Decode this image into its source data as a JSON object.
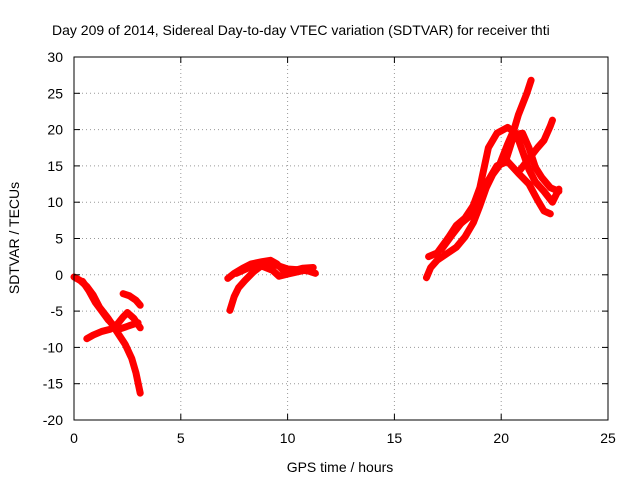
{
  "chart_data": {
    "type": "scatter",
    "title": "Day 209 of 2014, Sidereal Day-to-day VTEC variation (SDTVAR) for receiver thti",
    "xlabel": "GPS time / hours",
    "ylabel": "SDTVAR / TECUs",
    "xlim": [
      0,
      25
    ],
    "ylim": [
      -20,
      30
    ],
    "xticks": [
      "0",
      "5",
      "10",
      "15",
      "20",
      "25"
    ],
    "yticks": [
      "-20",
      "-15",
      "-10",
      "-5",
      "0",
      "5",
      "10",
      "15",
      "20",
      "25",
      "30"
    ],
    "grid": true,
    "legend": "none",
    "marker": "+",
    "color": "#ff0000",
    "series": [
      {
        "values": [
          [
            0.0,
            -0.3
          ],
          [
            0.3,
            -0.8
          ],
          [
            0.6,
            -1.6
          ],
          [
            0.9,
            -2.8
          ],
          [
            1.2,
            -4.5
          ],
          [
            1.6,
            -6.0
          ],
          [
            2.0,
            -7.8
          ],
          [
            2.4,
            -9.6
          ],
          [
            2.7,
            -11.5
          ],
          [
            2.9,
            -13.5
          ],
          [
            3.1,
            -16.3
          ]
        ]
      },
      {
        "values": [
          [
            0.4,
            -0.9
          ],
          [
            0.7,
            -2.2
          ],
          [
            1.0,
            -3.8
          ],
          [
            1.3,
            -5.0
          ],
          [
            1.6,
            -6.2
          ],
          [
            1.9,
            -7.1
          ],
          [
            2.2,
            -7.4
          ],
          [
            2.6,
            -7.0
          ],
          [
            3.0,
            -6.6
          ]
        ]
      },
      {
        "values": [
          [
            0.6,
            -8.8
          ],
          [
            0.9,
            -8.3
          ],
          [
            1.3,
            -7.8
          ],
          [
            1.7,
            -7.5
          ],
          [
            2.0,
            -6.9
          ],
          [
            2.3,
            -5.8
          ],
          [
            2.5,
            -5.2
          ],
          [
            2.8,
            -6.0
          ],
          [
            3.1,
            -7.3
          ]
        ]
      },
      {
        "values": [
          [
            2.3,
            -2.6
          ],
          [
            2.6,
            -2.9
          ],
          [
            2.9,
            -3.5
          ],
          [
            3.1,
            -4.2
          ]
        ]
      },
      {
        "values": [
          [
            7.3,
            -4.9
          ],
          [
            7.5,
            -3.0
          ],
          [
            7.7,
            -1.8
          ],
          [
            8.0,
            -0.8
          ],
          [
            8.4,
            0.4
          ],
          [
            8.8,
            1.3
          ],
          [
            9.2,
            1.6
          ],
          [
            9.6,
            1.2
          ],
          [
            10.0,
            0.8
          ],
          [
            10.5,
            0.7
          ],
          [
            11.0,
            0.5
          ],
          [
            11.3,
            0.2
          ]
        ]
      },
      {
        "values": [
          [
            7.2,
            -0.5
          ],
          [
            7.5,
            0.2
          ],
          [
            7.9,
            0.9
          ],
          [
            8.3,
            1.5
          ],
          [
            8.8,
            1.8
          ],
          [
            9.2,
            2.0
          ],
          [
            9.5,
            1.5
          ],
          [
            9.8,
            0.6
          ],
          [
            10.2,
            0.5
          ],
          [
            10.7,
            0.9
          ],
          [
            11.2,
            1.0
          ]
        ]
      },
      {
        "values": [
          [
            7.6,
            0.2
          ],
          [
            8.2,
            1.0
          ],
          [
            8.8,
            1.2
          ],
          [
            9.3,
            0.6
          ],
          [
            9.6,
            -0.2
          ],
          [
            10.0,
            0.1
          ],
          [
            10.6,
            0.5
          ],
          [
            11.1,
            0.8
          ]
        ]
      },
      {
        "values": [
          [
            16.5,
            -0.4
          ],
          [
            16.7,
            1.0
          ],
          [
            17.0,
            2.0
          ],
          [
            17.5,
            3.0
          ],
          [
            17.9,
            3.8
          ],
          [
            18.3,
            5.2
          ],
          [
            18.7,
            7.2
          ],
          [
            19.0,
            9.5
          ],
          [
            19.3,
            12.0
          ],
          [
            19.6,
            13.8
          ],
          [
            19.9,
            15.0
          ],
          [
            20.1,
            16.5
          ],
          [
            20.3,
            18.0
          ],
          [
            20.6,
            20.0
          ],
          [
            20.8,
            22.0
          ],
          [
            21.0,
            23.5
          ],
          [
            21.2,
            25.0
          ],
          [
            21.4,
            26.8
          ]
        ]
      },
      {
        "values": [
          [
            16.6,
            2.5
          ],
          [
            17.0,
            3.0
          ],
          [
            17.5,
            5.0
          ],
          [
            17.9,
            6.8
          ],
          [
            18.3,
            7.8
          ],
          [
            18.8,
            10.0
          ],
          [
            19.3,
            12.5
          ],
          [
            19.8,
            15.0
          ],
          [
            20.3,
            15.6
          ],
          [
            20.8,
            14.0
          ],
          [
            21.3,
            12.5
          ],
          [
            21.7,
            10.3
          ],
          [
            22.0,
            8.8
          ],
          [
            22.3,
            8.4
          ]
        ]
      },
      {
        "values": [
          [
            17.2,
            3.5
          ],
          [
            17.7,
            5.5
          ],
          [
            18.2,
            7.4
          ],
          [
            18.6,
            8.3
          ],
          [
            19.0,
            10.5
          ],
          [
            19.4,
            13.0
          ],
          [
            19.8,
            15.0
          ],
          [
            20.2,
            15.6
          ],
          [
            20.6,
            19.3
          ],
          [
            21.0,
            19.5
          ],
          [
            21.3,
            17.5
          ],
          [
            21.6,
            14.8
          ],
          [
            21.9,
            13.4
          ],
          [
            22.3,
            12.0
          ],
          [
            22.7,
            11.5
          ]
        ]
      },
      {
        "values": [
          [
            17.5,
            5.0
          ],
          [
            18.0,
            6.8
          ],
          [
            18.5,
            8.0
          ],
          [
            19.0,
            12.0
          ],
          [
            19.4,
            17.5
          ],
          [
            19.8,
            19.5
          ],
          [
            20.3,
            20.3
          ],
          [
            20.7,
            19.5
          ],
          [
            21.0,
            17.0
          ],
          [
            21.3,
            14.5
          ],
          [
            21.6,
            12.8
          ],
          [
            22.0,
            11.5
          ],
          [
            22.4,
            10.0
          ],
          [
            22.7,
            11.8
          ]
        ]
      },
      {
        "values": [
          [
            20.9,
            14.5
          ],
          [
            21.3,
            16.0
          ],
          [
            21.7,
            17.5
          ],
          [
            22.0,
            18.5
          ],
          [
            22.3,
            20.5
          ],
          [
            22.4,
            21.3
          ]
        ]
      }
    ]
  }
}
